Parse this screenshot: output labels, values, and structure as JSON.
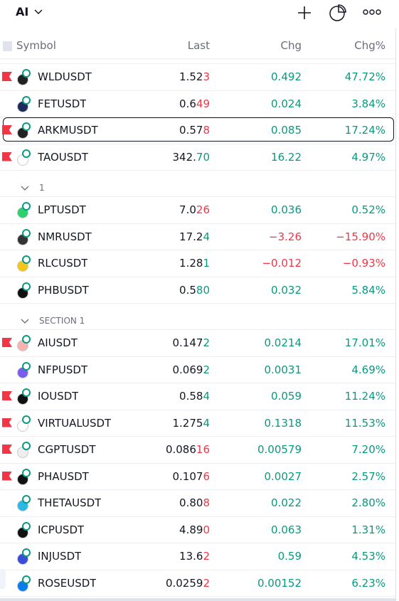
{
  "header": {
    "title": "AI"
  },
  "columns": [
    "Symbol",
    "Last",
    "Chg",
    "Chg%"
  ],
  "sections": [
    {
      "rows": [
        {
          "symbol": "WLDUSDT",
          "last_base": "1.52",
          "last_tick": "3",
          "tick_color": "#f23645",
          "chg": "0.492",
          "chg_pct": "47.72%",
          "change_color": "#089981",
          "flagged": true,
          "icon_color": "#222"
        },
        {
          "symbol": "FETUSDT",
          "last_base": "0.6",
          "last_tick": "49",
          "tick_color": "#f23645",
          "chg": "0.024",
          "chg_pct": "3.84%",
          "change_color": "#089981",
          "flagged": false,
          "icon_color": "#1f2a5c"
        },
        {
          "symbol": "ARKMUSDT",
          "last_base": "0.57",
          "last_tick": "8",
          "tick_color": "#f23645",
          "chg": "0.085",
          "chg_pct": "17.24%",
          "change_color": "#089981",
          "flagged": true,
          "selected": true,
          "icon_color": "#222"
        },
        {
          "symbol": "TAOUSDT",
          "last_base": "342.",
          "last_tick": "70",
          "tick_color": "#089981",
          "chg": "16.22",
          "chg_pct": "4.97%",
          "change_color": "#089981",
          "flagged": true,
          "icon_color": "#fff"
        }
      ]
    },
    {
      "title": "1",
      "rows": [
        {
          "symbol": "LPTUSDT",
          "last_base": "7.0",
          "last_tick": "26",
          "tick_color": "#f23645",
          "chg": "0.036",
          "chg_pct": "0.52%",
          "change_color": "#089981",
          "flagged": false,
          "icon_color": "#2bd16b"
        },
        {
          "symbol": "NMRUSDT",
          "last_base": "17.2",
          "last_tick": "4",
          "tick_color": "#089981",
          "chg": "−3.26",
          "chg_pct": "−15.90%",
          "change_color": "#f23645",
          "flagged": false,
          "icon_color": "#333"
        },
        {
          "symbol": "RLCUSDT",
          "last_base": "1.28",
          "last_tick": "1",
          "tick_color": "#089981",
          "chg": "−0.012",
          "chg_pct": "−0.93%",
          "change_color": "#f23645",
          "flagged": false,
          "icon_color": "#f5c518"
        },
        {
          "symbol": "PHBUSDT",
          "last_base": "0.5",
          "last_tick": "80",
          "tick_color": "#089981",
          "chg": "0.032",
          "chg_pct": "5.84%",
          "change_color": "#089981",
          "flagged": false,
          "icon_color": "#111"
        }
      ]
    },
    {
      "title": "SECTION 1",
      "rows": [
        {
          "symbol": "AIUSDT",
          "last_base": "0.147",
          "last_tick": "2",
          "tick_color": "#089981",
          "chg": "0.0214",
          "chg_pct": "17.01%",
          "change_color": "#089981",
          "flagged": true,
          "icon_color": "#f7b2b2"
        },
        {
          "symbol": "NFPUSDT",
          "last_base": "0.069",
          "last_tick": "2",
          "tick_color": "#089981",
          "chg": "0.0031",
          "chg_pct": "4.69%",
          "change_color": "#089981",
          "flagged": false,
          "icon_color": "#7b5cf0"
        },
        {
          "symbol": "IOUSDT",
          "last_base": "0.58",
          "last_tick": "4",
          "tick_color": "#089981",
          "chg": "0.059",
          "chg_pct": "11.24%",
          "change_color": "#089981",
          "flagged": true,
          "icon_color": "#111"
        },
        {
          "symbol": "VIRTUALUSDT",
          "last_base": "1.275",
          "last_tick": "4",
          "tick_color": "#089981",
          "chg": "0.1318",
          "chg_pct": "11.53%",
          "change_color": "#089981",
          "flagged": true,
          "icon_color": "#fff"
        },
        {
          "symbol": "CGPTUSDT",
          "last_base": "0.086",
          "last_tick": "16",
          "tick_color": "#f23645",
          "chg": "0.00579",
          "chg_pct": "7.20%",
          "change_color": "#089981",
          "flagged": true,
          "icon_color": "#eee"
        },
        {
          "symbol": "PHAUSDT",
          "last_base": "0.107",
          "last_tick": "6",
          "tick_color": "#f23645",
          "chg": "0.0027",
          "chg_pct": "2.57%",
          "change_color": "#089981",
          "flagged": true,
          "icon_color": "#111"
        },
        {
          "symbol": "THETAUSDT",
          "last_base": "0.80",
          "last_tick": "8",
          "tick_color": "#f23645",
          "chg": "0.022",
          "chg_pct": "2.80%",
          "change_color": "#089981",
          "flagged": false,
          "icon_color": "#2ab8e6"
        },
        {
          "symbol": "ICPUSDT",
          "last_base": "4.89",
          "last_tick": "0",
          "tick_color": "#f23645",
          "chg": "0.063",
          "chg_pct": "1.31%",
          "change_color": "#089981",
          "flagged": false,
          "icon_color": "#111"
        },
        {
          "symbol": "INJUSDT",
          "last_base": "13.6",
          "last_tick": "2",
          "tick_color": "#f23645",
          "chg": "0.59",
          "chg_pct": "4.53%",
          "change_color": "#089981",
          "flagged": false,
          "icon_color": "#3b4cdb"
        },
        {
          "symbol": "ROSEUSDT",
          "last_base": "0.0259",
          "last_tick": "2",
          "tick_color": "#f23645",
          "chg": "0.00152",
          "chg_pct": "6.23%",
          "change_color": "#089981",
          "flagged": false,
          "icon_color": "#0a7cf0"
        }
      ]
    }
  ]
}
